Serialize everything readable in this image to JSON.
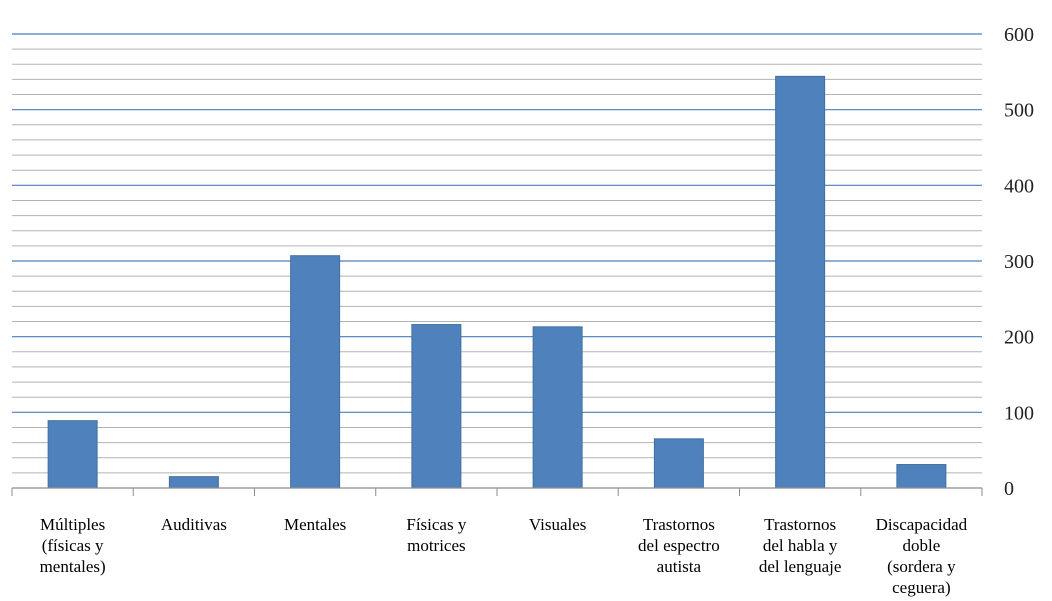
{
  "chart_data": {
    "type": "bar",
    "categories": [
      "Múltiples (físicas y mentales)",
      "Auditivas",
      "Mentales",
      "Físicas y motrices",
      "Visuales",
      "Trastornos del espectro autista",
      "Trastornos del habla y del lenguaje",
      "Discapacidad doble (sordera y ceguera)"
    ],
    "category_lines": [
      [
        "Múltiples",
        "(físicas y",
        "mentales)"
      ],
      [
        "Auditivas"
      ],
      [
        "Mentales"
      ],
      [
        "Físicas y",
        "motrices"
      ],
      [
        "Visuales"
      ],
      [
        "Trastornos",
        "del espectro",
        "autista"
      ],
      [
        "Trastornos",
        "del habla y",
        "del lenguaje"
      ],
      [
        "Discapacidad",
        "doble",
        "(sordera y",
        "ceguera)"
      ]
    ],
    "values": [
      89,
      15,
      307,
      216,
      213,
      65,
      544,
      31
    ],
    "ylim": [
      0,
      600
    ],
    "yticks": [
      0,
      100,
      200,
      300,
      400,
      500,
      600
    ],
    "minor_step": 20,
    "y_axis_side": "right",
    "grid": true,
    "title": "",
    "xlabel": "",
    "ylabel": "",
    "colors": {
      "bar": "#4f81bd",
      "bar_edge": "#41709f",
      "major_grid": "#4a7ebb",
      "minor_grid": "#b3b3b3",
      "axis": "#8c8c8c"
    }
  }
}
